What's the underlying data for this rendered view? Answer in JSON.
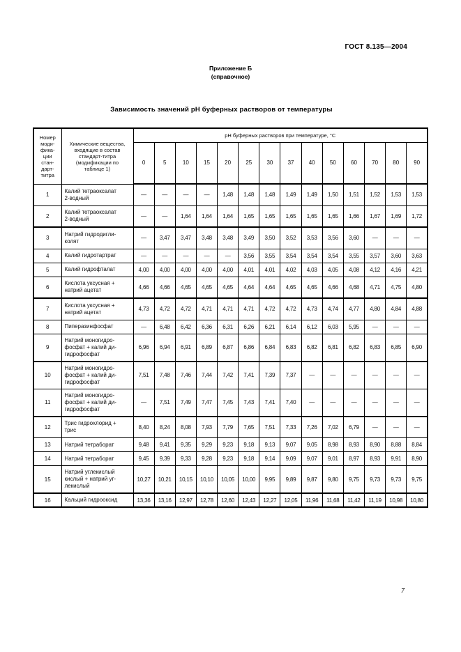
{
  "page": {
    "doc_ref": "ГОСТ 8.135—2004",
    "annex_title": "Приложение Б",
    "annex_note": "(справочное)",
    "title": "Зависимость значений pH буферных растворов от температуры",
    "page_number": "7"
  },
  "table": {
    "col1_header": "Номер\nмоди-\nфика-\nции\nстан-\nдарт-\nтитра",
    "col2_header": "Химические вещества,\nвходящие в состав\nстандарт-титра\n(модификации по\nтаблице 1)",
    "ph_header": "pH буферных растворов при температуре, °С",
    "temperatures": [
      "0",
      "5",
      "10",
      "15",
      "20",
      "25",
      "30",
      "37",
      "40",
      "50",
      "60",
      "70",
      "80",
      "90"
    ],
    "rows": [
      {
        "num": "1",
        "name": "Калий тетраоксалат\n2-водный",
        "lines": 2,
        "group_end": false,
        "values": [
          "—",
          "—",
          "—",
          "—",
          "1,48",
          "1,48",
          "1,48",
          "1,49",
          "1,49",
          "1,50",
          "1,51",
          "1,52",
          "1,53",
          "1,53"
        ]
      },
      {
        "num": "2",
        "name": "Калий тетраоксалат\n2-водный",
        "lines": 2,
        "group_end": true,
        "values": [
          "—",
          "—",
          "1,64",
          "1,64",
          "1,64",
          "1,65",
          "1,65",
          "1,65",
          "1,65",
          "1,65",
          "1,66",
          "1,67",
          "1,69",
          "1,72"
        ]
      },
      {
        "num": "3",
        "name": "Натрий гидродигли-\nколят",
        "lines": 2,
        "group_end": false,
        "values": [
          "—",
          "3,47",
          "3,47",
          "3,48",
          "3,48",
          "3,49",
          "3,50",
          "3,52",
          "3,53",
          "3,56",
          "3,60",
          "—",
          "—",
          "—"
        ]
      },
      {
        "num": "4",
        "name": "Калий гидротартрат",
        "lines": 1,
        "group_end": false,
        "values": [
          "—",
          "—",
          "—",
          "—",
          "—",
          "3,56",
          "3,55",
          "3,54",
          "3,54",
          "3,54",
          "3,55",
          "3,57",
          "3,60",
          "3,63"
        ]
      },
      {
        "num": "5",
        "name": "Калий гидрофталат",
        "lines": 1,
        "group_end": false,
        "values": [
          "4,00",
          "4,00",
          "4,00",
          "4,00",
          "4,00",
          "4,01",
          "4,01",
          "4,02",
          "4,03",
          "4,05",
          "4,08",
          "4,12",
          "4,16",
          "4,21"
        ]
      },
      {
        "num": "6",
        "name": "Кислота уксусная +\nнатрий ацетат",
        "lines": 2,
        "group_end": true,
        "values": [
          "4,66",
          "4,66",
          "4,65",
          "4,65",
          "4,65",
          "4,64",
          "4,64",
          "4,65",
          "4,65",
          "4,66",
          "4,68",
          "4,71",
          "4,75",
          "4,80"
        ]
      },
      {
        "num": "7",
        "name": "Кислота уксусная +\nнатрий ацетат",
        "lines": 2,
        "group_end": false,
        "values": [
          "4,73",
          "4,72",
          "4,72",
          "4,71",
          "4,71",
          "4,71",
          "4,72",
          "4,72",
          "4,73",
          "4,74",
          "4,77",
          "4,80",
          "4,84",
          "4,88"
        ]
      },
      {
        "num": "8",
        "name": "Пиперазинфосфат",
        "lines": 1,
        "group_end": false,
        "values": [
          "—",
          "6,48",
          "6,42",
          "6,36",
          "6,31",
          "6,26",
          "6,21",
          "6,14",
          "6,12",
          "6,03",
          "5,95",
          "—",
          "—",
          "—"
        ]
      },
      {
        "num": "9",
        "name": "Натрий моногидро-\nфосфат + калий ди-\nгидрофосфат",
        "lines": 3,
        "group_end": true,
        "values": [
          "6,96",
          "6,94",
          "6,91",
          "6,89",
          "6,87",
          "6,86",
          "6,84",
          "6,83",
          "6,82",
          "6,81",
          "6,82",
          "6,83",
          "6,85",
          "6,90"
        ]
      },
      {
        "num": "10",
        "name": "Натрий моногидро-\nфосфат + калий ди-\nгидрофосфат",
        "lines": 3,
        "group_end": false,
        "values": [
          "7,51",
          "7,48",
          "7,46",
          "7,44",
          "7,42",
          "7,41",
          "7,39",
          "7,37",
          "—",
          "—",
          "—",
          "—",
          "—",
          "—"
        ]
      },
      {
        "num": "11",
        "name": "Натрий моногидро-\nфосфат + калий ди-\nгидрофосфат",
        "lines": 3,
        "group_end": true,
        "values": [
          "—",
          "7,51",
          "7,49",
          "7,47",
          "7,45",
          "7,43",
          "7,41",
          "7,40",
          "—",
          "—",
          "—",
          "—",
          "—",
          "—"
        ]
      },
      {
        "num": "12",
        "name": "Трис гидрохлорид +\nтрис",
        "lines": 2,
        "group_end": false,
        "values": [
          "8,40",
          "8,24",
          "8,08",
          "7,93",
          "7,79",
          "7,65",
          "7,51",
          "7,33",
          "7,26",
          "7,02",
          "6,79",
          "—",
          "—",
          "—"
        ]
      },
      {
        "num": "13",
        "name": "Натрий тетраборат",
        "lines": 1,
        "group_end": false,
        "values": [
          "9,48",
          "9,41",
          "9,35",
          "9,29",
          "9,23",
          "9,18",
          "9,13",
          "9,07",
          "9,05",
          "8,98",
          "8,93",
          "8,90",
          "8,88",
          "8,84"
        ]
      },
      {
        "num": "14",
        "name": "Натрий тетраборат",
        "lines": 1,
        "group_end": false,
        "values": [
          "9,45",
          "9,39",
          "9,33",
          "9,28",
          "9,23",
          "9,18",
          "9,14",
          "9,09",
          "9,07",
          "9,01",
          "8,97",
          "8,93",
          "9,91",
          "8,90"
        ]
      },
      {
        "num": "15",
        "name": "Натрий углекислый\nкислый + натрий уг-\nлекислый",
        "lines": 3,
        "group_end": true,
        "values": [
          "10,27",
          "10,21",
          "10,15",
          "10,10",
          "10,05",
          "10,00",
          "9,95",
          "9,89",
          "9,87",
          "9,80",
          "9,75",
          "9,73",
          "9,73",
          "9,75"
        ]
      },
      {
        "num": "16",
        "name": "Кальций гидрооксид",
        "lines": 1,
        "group_end": false,
        "values": [
          "13,36",
          "13,16",
          "12,97",
          "12,78",
          "12,60",
          "12,43",
          "12,27",
          "12,05",
          "11,96",
          "11,68",
          "11,42",
          "11,19",
          "10,98",
          "10,80"
        ]
      }
    ]
  }
}
